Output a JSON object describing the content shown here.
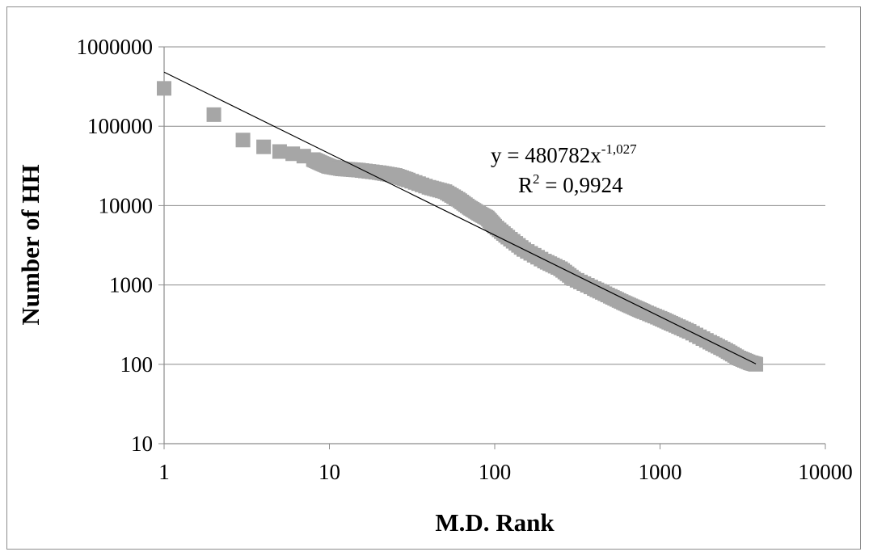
{
  "chart_data": {
    "type": "scatter",
    "xlabel": "M.D. Rank",
    "ylabel": "Number of HH",
    "xscale": "log",
    "yscale": "log",
    "xlim": [
      1,
      10000
    ],
    "ylim": [
      10,
      1000000
    ],
    "x_ticks": [
      "1",
      "10",
      "100",
      "1000",
      "10000"
    ],
    "y_ticks": [
      "10",
      "100",
      "1000",
      "10000",
      "100000",
      "1000000"
    ],
    "grid": "horizontal major",
    "marker_color": "#a6a6a6",
    "trendline_color": "#000000",
    "trendline": {
      "type": "power",
      "a": 480782,
      "b": -1.027,
      "x_range": [
        1,
        3800
      ]
    },
    "annotation": {
      "equation_prefix": "y = 480782x",
      "equation_exponent": "-1,027",
      "r2_prefix": "R",
      "r2_exponent": "2",
      "r2_suffix": " = 0,9924"
    },
    "series": [
      {
        "x": [
          1,
          2,
          3,
          4,
          5,
          6,
          7,
          8,
          9,
          10,
          12,
          15,
          20,
          25,
          30,
          40,
          50,
          60,
          70,
          80,
          90,
          100,
          120,
          150,
          200,
          250,
          300,
          400,
          500,
          600,
          700,
          800,
          1000,
          1200,
          1500,
          2000,
          2500,
          3000,
          3500,
          3800
        ],
        "y": [
          300000,
          140000,
          67000,
          55000,
          48000,
          45000,
          42000,
          38000,
          34000,
          31000,
          29000,
          28000,
          26000,
          24000,
          21000,
          17000,
          15000,
          12000,
          9500,
          8000,
          7000,
          5500,
          4000,
          2800,
          2000,
          1600,
          1200,
          900,
          720,
          600,
          520,
          460,
          380,
          320,
          260,
          190,
          150,
          120,
          105,
          100
        ]
      }
    ]
  }
}
